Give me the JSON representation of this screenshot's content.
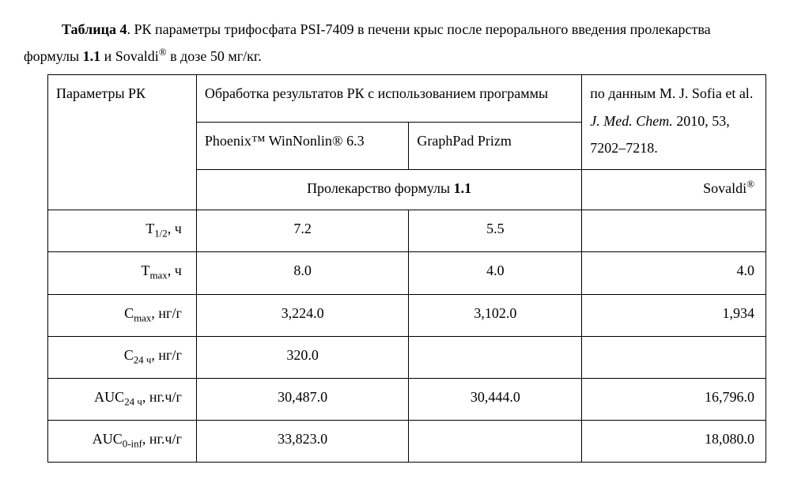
{
  "caption": {
    "label": "Таблица 4",
    "text_a": ". РК параметры трифосфата PSI-7409 в печени крыс после перорального введения пролекарства формулы ",
    "bold11": "1.1",
    "text_b": " и Sovaldi",
    "reg": "®",
    "text_c": " в дозе 50 мг/кг."
  },
  "head": {
    "param": "Параметры РК",
    "proc": "Обработка результатов РК с использованием программы",
    "ref_a": "по данным M. J. Sofia et al. ",
    "ref_ital": "J. Med. Chem.",
    "ref_b": " 2010, 53, 7202–7218.",
    "softA": "Phoenix™ WinNonlin® 6.3",
    "softB": "GraphPad Prizm",
    "drugA_a": "Пролекарство формулы ",
    "drugA_b": "1.1",
    "drugB": "Sovaldi",
    "reg": "®"
  },
  "rows": [
    {
      "p_a": "Т",
      "p_sub": "1/2",
      "p_b": ", ч",
      "a": "7.2",
      "b": "5.5",
      "c": ""
    },
    {
      "p_a": "T",
      "p_sub": "max",
      "p_b": ", ч",
      "a": "8.0",
      "b": "4.0",
      "c": "4.0"
    },
    {
      "p_a": "C",
      "p_sub": "max",
      "p_b": ", нг/г",
      "a": "3,224.0",
      "b": "3,102.0",
      "c": "1,934"
    },
    {
      "p_a": "C",
      "p_sub": "24 ч",
      "p_b": ", нг/г",
      "a": "320.0",
      "b": "",
      "c": ""
    },
    {
      "p_a": "AUC",
      "p_sub": "24 ч",
      "p_b": ", нг.ч/г",
      "a": "30,487.0",
      "b": "30,444.0",
      "c": "16,796.0"
    },
    {
      "p_a": "AUC",
      "p_sub": "0-inf",
      "p_b": ", нг.ч/г",
      "a": "33,823.0",
      "b": "",
      "c": "18,080.0"
    }
  ]
}
